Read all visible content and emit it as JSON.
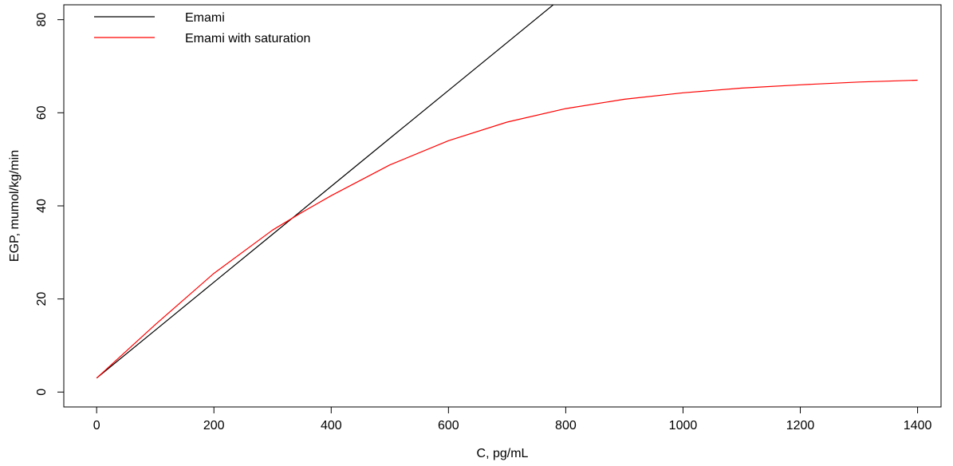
{
  "chart_data": {
    "type": "line",
    "xlabel": "C, pg/mL",
    "ylabel": "EGP, mumol/kg/min",
    "xlim": [
      -56,
      1440
    ],
    "ylim": [
      -3.2,
      83.2
    ],
    "x_ticks": [
      "0",
      "200",
      "400",
      "600",
      "800",
      "1000",
      "1200",
      "1400"
    ],
    "y_ticks": [
      "0",
      "20",
      "40",
      "60",
      "80"
    ],
    "grid": false,
    "legend_position": "top-left",
    "series": [
      {
        "name": "Emami",
        "color": "#000000",
        "x": [
          0,
          100,
          200,
          300,
          400,
          500,
          600,
          700,
          800
        ],
        "y": [
          3.0,
          13.3,
          23.6,
          33.9,
          44.2,
          54.5,
          64.8,
          75.1,
          85.4
        ]
      },
      {
        "name": "Emami with saturation",
        "color": "#ff0000",
        "x": [
          0,
          100,
          200,
          300,
          350,
          400,
          500,
          600,
          700,
          800,
          900,
          1000,
          1100,
          1200,
          1300,
          1400
        ],
        "y": [
          3.0,
          14.5,
          25.5,
          34.8,
          38.6,
          42.2,
          48.8,
          54.0,
          58.0,
          60.9,
          62.9,
          64.3,
          65.3,
          66.0,
          66.6,
          67.0
        ]
      }
    ]
  }
}
